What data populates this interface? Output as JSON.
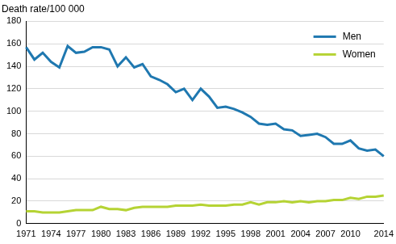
{
  "chart_data": {
    "type": "line",
    "y_label": "Death rate/100 000",
    "categories": [
      "1971",
      null,
      null,
      "1974",
      null,
      null,
      "1977",
      null,
      null,
      "1980",
      null,
      null,
      "1983",
      null,
      null,
      "1986",
      null,
      null,
      "1989",
      null,
      null,
      "1992",
      null,
      null,
      "1995",
      null,
      null,
      "1998",
      null,
      null,
      "2001",
      null,
      null,
      "2004",
      null,
      null,
      "2007",
      null,
      null,
      "2010",
      null,
      null,
      null,
      "2014"
    ],
    "series": [
      {
        "name": "Men",
        "color": "#1f78b0",
        "values": [
          157,
          146,
          152,
          144,
          139,
          158,
          152,
          153,
          157,
          157,
          155,
          140,
          148,
          139,
          142,
          131,
          128,
          124,
          117,
          120,
          110,
          120,
          113,
          103,
          104,
          102,
          99,
          95,
          89,
          88,
          89,
          84,
          83,
          78,
          79,
          80,
          77,
          71,
          71,
          74,
          67,
          65,
          66,
          60
        ]
      },
      {
        "name": "Women",
        "color": "#b5d334",
        "values": [
          11,
          11,
          10,
          10,
          10,
          11,
          12,
          12,
          12,
          15,
          13,
          13,
          12,
          14,
          15,
          15,
          15,
          15,
          16,
          16,
          16,
          17,
          16,
          16,
          16,
          17,
          17,
          19,
          17,
          19,
          19,
          20,
          19,
          20,
          19,
          20,
          20,
          21,
          21,
          23,
          22,
          24,
          24,
          25
        ]
      }
    ],
    "ylim": [
      0,
      180
    ],
    "yticks": [
      0,
      20,
      40,
      60,
      80,
      100,
      120,
      140,
      160,
      180
    ],
    "grid": true,
    "legend": "upper right",
    "marker": "none",
    "line_style": "solid"
  }
}
